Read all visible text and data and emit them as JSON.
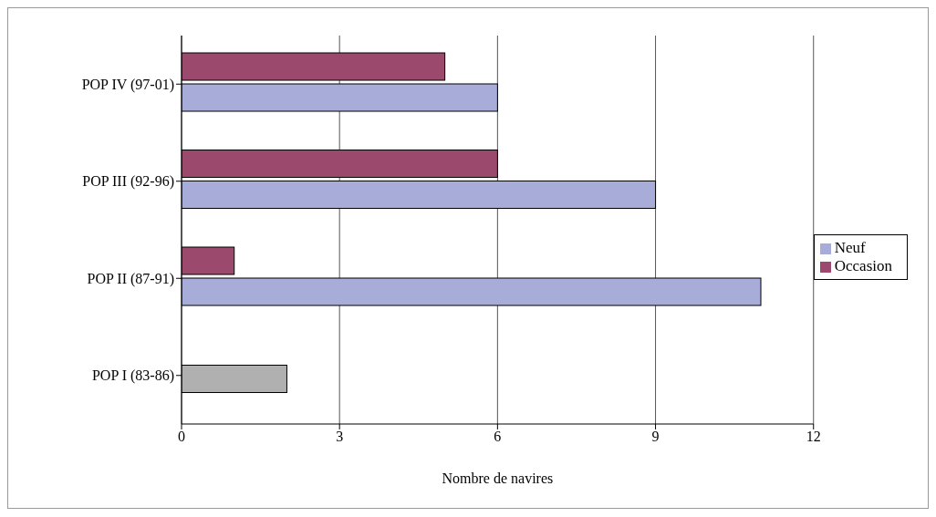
{
  "chart_data": {
    "type": "bar",
    "orientation": "horizontal",
    "xlabel": "Nombre de navires",
    "categories": [
      "POP IV (97-01)",
      "POP III (92-96)",
      "POP II (87-91)",
      "POP I (83-86)"
    ],
    "series": [
      {
        "name": "Occasion",
        "color": "#9b4a6e",
        "values": [
          5,
          6,
          1,
          null
        ]
      },
      {
        "name": "Neuf",
        "color": "#a8acd8",
        "values": [
          6,
          9,
          11,
          null
        ]
      },
      {
        "color": "#b0b0b0",
        "values": [
          null,
          null,
          null,
          2
        ]
      }
    ],
    "xlim": [
      0,
      12
    ],
    "xticks": [
      0,
      3,
      6,
      9,
      12
    ],
    "grid": "x",
    "legend": "right"
  }
}
